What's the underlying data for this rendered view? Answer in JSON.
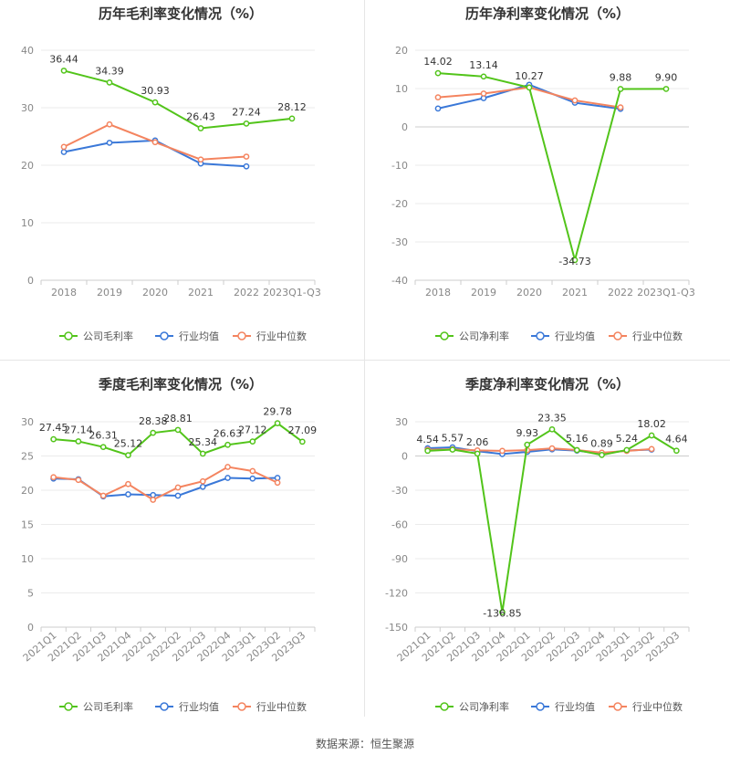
{
  "colors": {
    "company": "#52c41a",
    "avg": "#3a78d8",
    "median": "#f4845f",
    "axis": "#888888",
    "grid": "#ebebeb",
    "title": "#333333"
  },
  "legend": [
    "公司毛利率",
    "行业均值",
    "行业中位数"
  ],
  "source": "数据来源：恒生聚源",
  "chart_data": [
    {
      "type": "line",
      "title": "历年毛利率变化情况（%）",
      "categories": [
        "2018",
        "2019",
        "2020",
        "2021",
        "2022",
        "2023Q1-Q3"
      ],
      "ylim": [
        0,
        40
      ],
      "yticks": [
        0,
        10,
        20,
        30,
        40
      ],
      "grid": true,
      "legend_position": "bottom",
      "legend": [
        "公司毛利率",
        "行业均值",
        "行业中位数"
      ],
      "series": [
        {
          "name": "公司毛利率",
          "values": [
            36.44,
            34.39,
            30.93,
            26.43,
            27.24,
            28.12
          ],
          "labels": [
            "36.44",
            "34.39",
            "30.93",
            "26.43",
            "27.24",
            "28.12"
          ]
        },
        {
          "name": "行业均值",
          "values": [
            22.3,
            23.9,
            24.3,
            20.3,
            19.8,
            null
          ]
        },
        {
          "name": "行业中位数",
          "values": [
            23.2,
            27.1,
            24.0,
            21.0,
            21.5,
            null
          ]
        }
      ]
    },
    {
      "type": "line",
      "title": "历年净利率变化情况（%）",
      "categories": [
        "2018",
        "2019",
        "2020",
        "2021",
        "2022",
        "2023Q1-Q3"
      ],
      "ylim": [
        -40,
        20
      ],
      "yticks": [
        -40,
        -30,
        -20,
        -10,
        0,
        10,
        20
      ],
      "grid": true,
      "legend_position": "bottom",
      "legend": [
        "公司净利率",
        "行业均值",
        "行业中位数"
      ],
      "series": [
        {
          "name": "公司净利率",
          "values": [
            14.02,
            13.14,
            10.27,
            -34.73,
            9.88,
            9.9
          ],
          "labels": [
            "14.02",
            "13.14",
            "10.27",
            "-34.73",
            "9.88",
            "9.90"
          ]
        },
        {
          "name": "行业均值",
          "values": [
            4.8,
            7.5,
            11.0,
            6.3,
            4.7,
            null
          ]
        },
        {
          "name": "行业中位数",
          "values": [
            7.7,
            8.7,
            10.3,
            6.9,
            5.1,
            null
          ]
        }
      ]
    },
    {
      "type": "line",
      "title": "季度毛利率变化情况（%）",
      "categories": [
        "2021Q1",
        "2021Q2",
        "2021Q3",
        "2021Q4",
        "2022Q1",
        "2022Q2",
        "2022Q3",
        "2022Q4",
        "2023Q1",
        "2023Q2",
        "2023Q3"
      ],
      "ylim": [
        0,
        30
      ],
      "yticks": [
        0,
        5,
        10,
        15,
        20,
        25,
        30
      ],
      "grid": true,
      "legend_position": "bottom",
      "legend": [
        "公司毛利率",
        "行业均值",
        "行业中位数"
      ],
      "series": [
        {
          "name": "公司毛利率",
          "values": [
            27.45,
            27.14,
            26.31,
            25.12,
            28.38,
            28.81,
            25.34,
            26.63,
            27.12,
            29.78,
            27.09
          ],
          "labels": [
            "27.45",
            "27.14",
            "26.31",
            "25.12",
            "28.38",
            "28.81",
            "25.34",
            "26.63",
            "27.12",
            "29.78",
            "27.09"
          ]
        },
        {
          "name": "行业均值",
          "values": [
            21.7,
            21.6,
            19.1,
            19.4,
            19.3,
            19.2,
            20.5,
            21.8,
            21.7,
            21.8,
            null
          ]
        },
        {
          "name": "行业中位数",
          "values": [
            21.9,
            21.5,
            19.2,
            20.9,
            18.6,
            20.4,
            21.3,
            23.4,
            22.8,
            21.1,
            null
          ]
        }
      ]
    },
    {
      "type": "line",
      "title": "季度净利率变化情况（%）",
      "categories": [
        "2021Q1",
        "2021Q2",
        "2021Q3",
        "2021Q4",
        "2022Q1",
        "2022Q2",
        "2022Q3",
        "2022Q4",
        "2023Q1",
        "2023Q2",
        "2023Q3"
      ],
      "ylim": [
        -150,
        30
      ],
      "yticks": [
        -150,
        -120,
        -90,
        -60,
        -30,
        0,
        30
      ],
      "grid": true,
      "legend_position": "bottom",
      "legend": [
        "公司净利率",
        "行业均值",
        "行业中位数"
      ],
      "series": [
        {
          "name": "公司净利率",
          "values": [
            4.54,
            5.57,
            2.06,
            -136.85,
            9.93,
            23.35,
            5.16,
            0.89,
            5.24,
            18.02,
            4.64
          ],
          "labels": [
            "4.54",
            "5.57",
            "2.06",
            "-136.85",
            "9.93",
            "23.35",
            "5.16",
            "0.89",
            "5.24",
            "18.02",
            "4.64"
          ]
        },
        {
          "name": "行业均值",
          "values": [
            6.8,
            7.6,
            4.2,
            1.7,
            3.6,
            5.8,
            4.7,
            2.1,
            4.8,
            5.6,
            null
          ]
        },
        {
          "name": "行业中位数",
          "values": [
            5.5,
            5.9,
            4.9,
            4.5,
            5.1,
            6.7,
            5.2,
            2.9,
            4.4,
            6.1,
            null
          ]
        }
      ]
    }
  ]
}
